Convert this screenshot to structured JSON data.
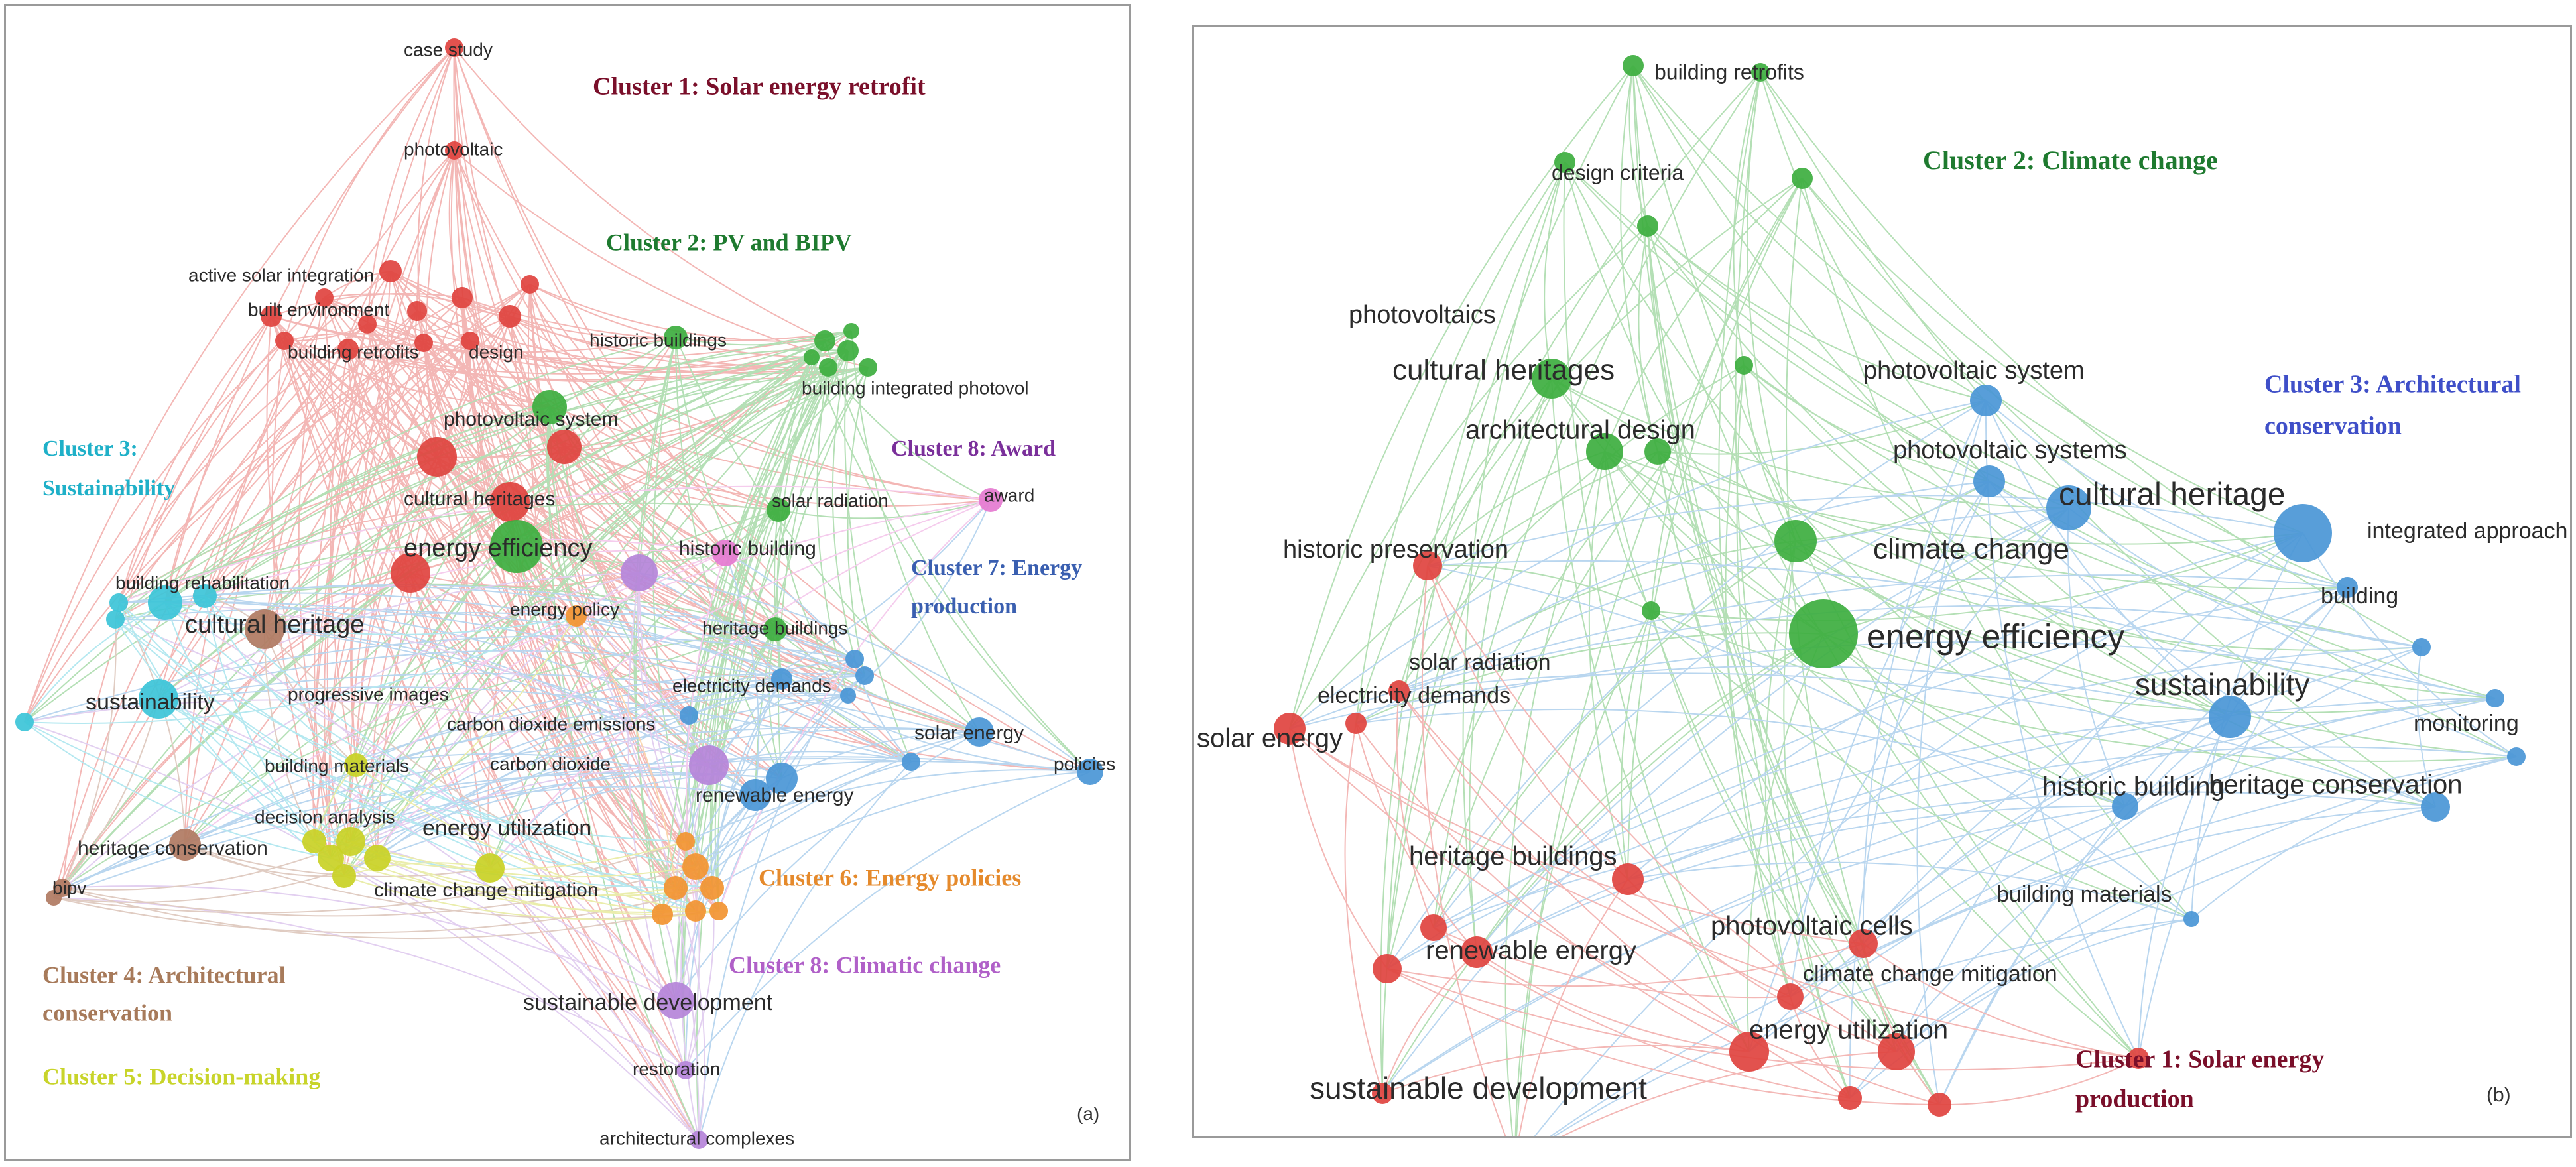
{
  "panels": [
    {
      "id": "a",
      "panel_label": "(a)",
      "clusters": [
        {
          "text": "Cluster 1: Solar energy retrofit",
          "color": "#7a0f2a"
        },
        {
          "text": "Cluster 2: PV and BIPV",
          "color": "#1e7a2f"
        },
        {
          "text": "Cluster 3:",
          "color": "#1fb0c8"
        },
        {
          "text": "Sustainability",
          "color": "#1fb0c8"
        },
        {
          "text": "Cluster 8: Award",
          "color": "#7a2f9a"
        },
        {
          "text": "Cluster 7: Energy",
          "color": "#3a5fb0"
        },
        {
          "text": "production",
          "color": "#3a5fb0"
        },
        {
          "text": "Cluster 6: Energy policies",
          "color": "#e58a2c"
        },
        {
          "text": "Cluster 8: Climatic change",
          "color": "#b060c8"
        },
        {
          "text": "Cluster 4: Architectural",
          "color": "#a77a5a"
        },
        {
          "text": "conservation",
          "color": "#a77a5a"
        },
        {
          "text": "Cluster 5: Decision-making",
          "color": "#c8d42a"
        }
      ],
      "labels": [
        "case study",
        "photovoltaic",
        "active solar integration",
        "built environment",
        "building retrofits",
        "design",
        "historic buildings",
        "building integrated photovol",
        "photovoltaic system",
        "cultural heritages",
        "award",
        "solar radiation",
        "energy efficiency",
        "historic building",
        "building rehabilitation",
        "cultural heritage",
        "energy policy",
        "heritage buildings",
        "electricity demands",
        "sustainability",
        "progressive images",
        "carbon dioxide emissions",
        "solar energy",
        "carbon dioxide",
        "policies",
        "building materials",
        "renewable energy",
        "decision analysis",
        "energy utilization",
        "heritage conservation",
        "climate change mitigation",
        "bipv",
        "sustainable development",
        "restoration",
        "architectural complexes"
      ]
    },
    {
      "id": "b",
      "panel_label": "(b)",
      "clusters": [
        {
          "text": "Cluster 2: Climate change",
          "color": "#1e7a2f"
        },
        {
          "text": "Cluster 3: Architectural",
          "color": "#3f4fc8"
        },
        {
          "text": "conservation",
          "color": "#3f4fc8"
        },
        {
          "text": "Cluster 1: Solar energy",
          "color": "#7a0f2a"
        },
        {
          "text": "production",
          "color": "#7a0f2a"
        }
      ],
      "labels": [
        "building retrofits",
        "design criteria",
        "photovoltaics",
        "cultural heritages",
        "photovoltaic system",
        "architectural design",
        "photovoltaic systems",
        "cultural heritage",
        "historic preservation",
        "climate change",
        "integrated approach",
        "energy efficiency",
        "building",
        "solar radiation",
        "electricity demands",
        "sustainability",
        "monitoring",
        "solar energy",
        "historic building",
        "heritage conservation",
        "heritage buildings",
        "building materials",
        "photovoltaic cells",
        "renewable energy",
        "climate change mitigation",
        "energy utilization",
        "sustainable development"
      ]
    }
  ],
  "colors": {
    "red": "#e0433f",
    "green": "#3dae3f",
    "blue": "#4a96d6",
    "cyan": "#3cc4d8",
    "brown": "#b07a62",
    "yellow": "#c9d125",
    "orange": "#f29431",
    "purple": "#b584d9",
    "pink": "#e57ad0"
  }
}
